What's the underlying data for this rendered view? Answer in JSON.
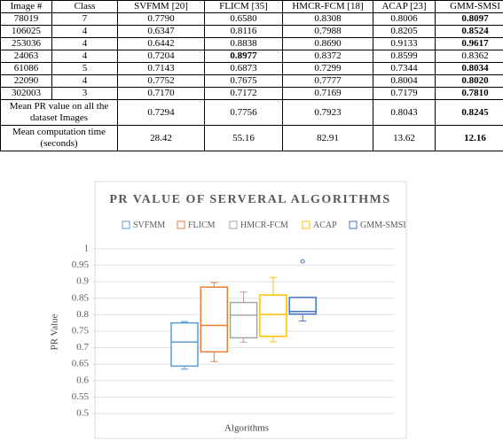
{
  "table": {
    "header": [
      "Image #",
      "Class",
      "SVFMM [20]",
      "FLICM [35]",
      "HMCR-FCM [18]",
      "ACAP [23]",
      "GMM-SMSI"
    ],
    "rows": [
      [
        "78019",
        "7",
        "0.7790",
        "0.6580",
        "0.8308",
        "0.8006",
        "0.8097"
      ],
      [
        "106025",
        "4",
        "0.6347",
        "0.8116",
        "0.7988",
        "0.8205",
        "0.8524"
      ],
      [
        "253036",
        "4",
        "0.6442",
        "0.8838",
        "0.8690",
        "0.9133",
        "0.9617"
      ],
      [
        "24063",
        "4",
        "0.7204",
        "0.8977",
        "0.8372",
        "0.8599",
        "0.8362"
      ],
      [
        "61086",
        "5",
        "0.7143",
        "0.6873",
        "0.7299",
        "0.7344",
        "0.8034"
      ],
      [
        "22090",
        "4",
        "0.7752",
        "0.7675",
        "0.7777",
        "0.8004",
        "0.8020"
      ],
      [
        "302003",
        "3",
        "0.7170",
        "0.7172",
        "0.7169",
        "0.7179",
        "0.7810"
      ],
      [
        "Mean PR value on all the dataset Images",
        "0.7294",
        "0.7756",
        "0.7923",
        "0.8043",
        "0.8245"
      ],
      [
        "Mean computation time (seconds)",
        "28.42",
        "55.16",
        "82.91",
        "13.62",
        "12.16"
      ]
    ]
  },
  "chart_data": {
    "type": "box",
    "title": "PR VALUE OF SERVERAL ALGORITHMS",
    "x_label": "Algorithms",
    "y_label": "PR Value",
    "ylim": [
      0.5,
      1
    ],
    "yticks": [
      0.5,
      0.55,
      0.6,
      0.65,
      0.7,
      0.75,
      0.8,
      0.85,
      0.9,
      0.95,
      1
    ],
    "grid": true,
    "series": [
      {
        "name": "SVFMM",
        "color": "#5b9bd5",
        "min": 0.6347,
        "q1": 0.6442,
        "median": 0.717,
        "q3": 0.7752,
        "max": 0.779,
        "outliers": []
      },
      {
        "name": "FLICM",
        "color": "#ed7d31",
        "min": 0.658,
        "q1": 0.6873,
        "median": 0.7675,
        "q3": 0.8838,
        "max": 0.8977,
        "outliers": []
      },
      {
        "name": "HMCR-FCM",
        "color": "#a5a5a5",
        "min": 0.7169,
        "q1": 0.7299,
        "median": 0.7988,
        "q3": 0.8372,
        "max": 0.869,
        "outliers": []
      },
      {
        "name": "ACAP",
        "color": "#ffc000",
        "min": 0.7179,
        "q1": 0.7344,
        "median": 0.8006,
        "q3": 0.8599,
        "max": 0.9133,
        "outliers": []
      },
      {
        "name": "GMM-SMSI",
        "color": "#4472c4",
        "min": 0.781,
        "q1": 0.802,
        "median": 0.8097,
        "q3": 0.8524,
        "max": 0.8524,
        "outliers": [
          0.9617
        ]
      }
    ]
  }
}
